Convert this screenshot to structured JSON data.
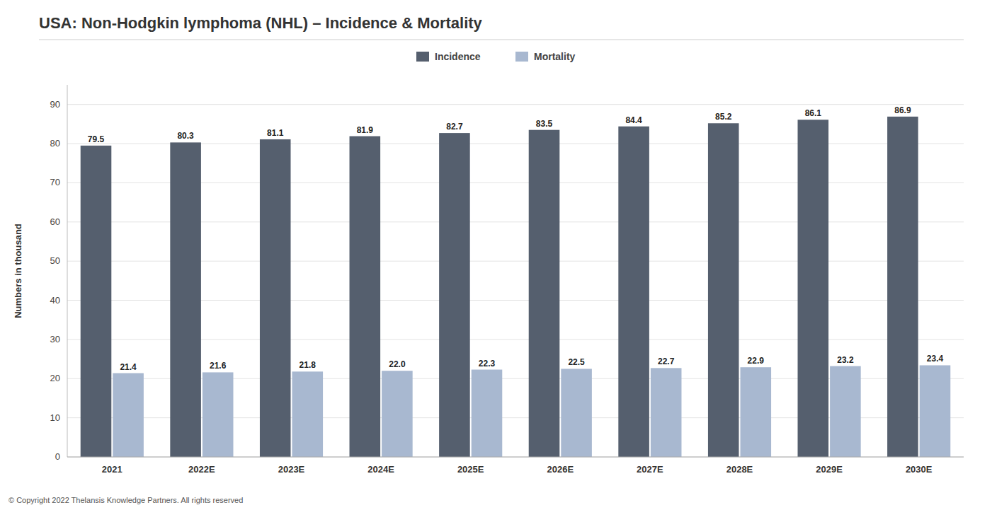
{
  "chart_data": {
    "type": "bar",
    "title": "USA: Non-Hodgkin lymphoma (NHL) – Incidence & Mortality",
    "ylabel": "Numbers in thousand",
    "categories": [
      "2021",
      "2022E",
      "2023E",
      "2024E",
      "2025E",
      "2026E",
      "2027E",
      "2028E",
      "2029E",
      "2030E"
    ],
    "series": [
      {
        "name": "Incidence",
        "color": "#555f6e",
        "values": [
          79.5,
          80.3,
          81.1,
          81.9,
          82.7,
          83.5,
          84.4,
          85.2,
          86.1,
          86.9
        ],
        "value_labels": [
          "79.5",
          "80.3",
          "81.1",
          "81.9",
          "82.7",
          "83.5",
          "84.4",
          "85.2",
          "86.1",
          "86.9"
        ]
      },
      {
        "name": "Mortality",
        "color": "#a8b8d0",
        "values": [
          21.4,
          21.6,
          21.8,
          22.0,
          22.3,
          22.5,
          22.7,
          22.9,
          23.2,
          23.4
        ],
        "value_labels": [
          "21.4",
          "21.6",
          "21.8",
          "22.0",
          "22.3",
          "22.5",
          "22.7",
          "22.9",
          "23.2",
          "23.4"
        ]
      }
    ],
    "ylim": [
      0,
      95
    ],
    "yticks": [
      0,
      10,
      20,
      30,
      40,
      50,
      60,
      70,
      80,
      90
    ],
    "grid": true,
    "legend": "top",
    "data_labels": true,
    "footer": "© Copyright 2022  Thelansis Knowledge Partners. All rights reserved"
  }
}
